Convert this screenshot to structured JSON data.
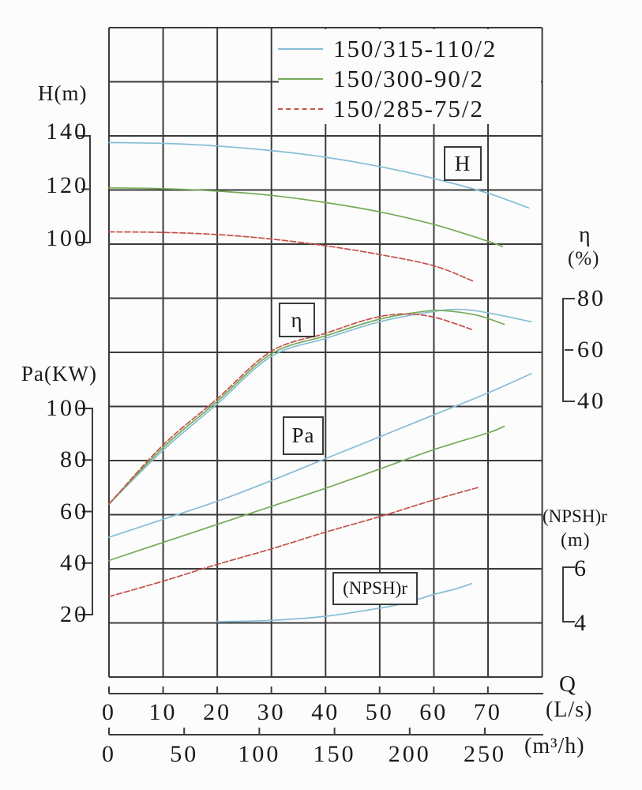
{
  "legend": {
    "items": [
      {
        "label": "150/315-110/2",
        "color": "#85bdd5",
        "dash": false
      },
      {
        "label": "150/300-90/2",
        "color": "#77aa58",
        "dash": false
      },
      {
        "label": "150/285-75/2",
        "color": "#c4524b",
        "dash": true
      }
    ]
  },
  "labels": {
    "h_axis": "H(m)",
    "pa_axis": "Pa(KW)",
    "eta_axis": "η",
    "eta_unit": "(%)",
    "npsh_axis": "(NPSH)r",
    "npsh_unit": "(m)",
    "q": "Q",
    "q_unit_ls": "(L/s)",
    "q_unit_m3h": "(m³/h)",
    "box_h": "H",
    "box_eta": "η",
    "box_pa": "Pa",
    "box_npsh": "(NPSH)r"
  },
  "colors": {
    "grid": "#3b3b3b",
    "axis": "#3b3b3b",
    "text": "#1a1a1a",
    "background": "#fcfcfc"
  },
  "chart_data": {
    "type": "line",
    "grid": true,
    "legend_position": "top",
    "x_axis": {
      "label": "Q",
      "primary_unit": "L/s",
      "secondary_unit": "m³/h",
      "ticks_L_per_s": [
        0,
        10,
        20,
        30,
        40,
        50,
        60,
        70
      ],
      "ticks_m3_per_h": [
        0,
        50,
        100,
        150,
        200,
        250
      ],
      "xlim_L_per_s": [
        0,
        80
      ]
    },
    "sections": [
      {
        "key": "H",
        "label": "H",
        "ylabel": "H(m)",
        "yticks": [
          140,
          120,
          100
        ],
        "series": [
          {
            "name": "150/315-110/2",
            "color": "#85bdd5",
            "dash": false,
            "points": [
              [
                0,
                137.5
              ],
              [
                10,
                137.2
              ],
              [
                20,
                136.2
              ],
              [
                30,
                134.5
              ],
              [
                40,
                132
              ],
              [
                50,
                128.5
              ],
              [
                60,
                124
              ],
              [
                70,
                118.5
              ],
              [
                77.5,
                113
              ]
            ]
          },
          {
            "name": "150/300-90/2",
            "color": "#77aa58",
            "dash": false,
            "points": [
              [
                0,
                120.5
              ],
              [
                10,
                120.2
              ],
              [
                20,
                119.3
              ],
              [
                30,
                117.7
              ],
              [
                40,
                115
              ],
              [
                50,
                111.5
              ],
              [
                60,
                106.8
              ],
              [
                70,
                100.5
              ],
              [
                72.7,
                98.5
              ]
            ]
          },
          {
            "name": "150/285-75/2",
            "color": "#c4524b",
            "dash": true,
            "points": [
              [
                0,
                104
              ],
              [
                10,
                103.8
              ],
              [
                20,
                103
              ],
              [
                30,
                101.3
              ],
              [
                40,
                98.8
              ],
              [
                50,
                95.5
              ],
              [
                60,
                91.3
              ],
              [
                67.3,
                85.5
              ]
            ]
          }
        ]
      },
      {
        "key": "eta",
        "label": "η",
        "ylabel": "η(%)",
        "yticks": [
          80,
          60,
          40
        ],
        "series": [
          {
            "name": "150/315-110/2",
            "color": "#85bdd5",
            "dash": false,
            "points": [
              [
                0,
                0
              ],
              [
                10,
                21
              ],
              [
                20,
                39
              ],
              [
                30,
                57.5
              ],
              [
                40,
                64.5
              ],
              [
                50,
                71
              ],
              [
                60,
                75
              ],
              [
                65,
                75.8
              ],
              [
                70,
                74.5
              ],
              [
                78,
                71
              ]
            ]
          },
          {
            "name": "150/300-90/2",
            "color": "#77aa58",
            "dash": false,
            "points": [
              [
                0,
                0
              ],
              [
                10,
                22
              ],
              [
                20,
                40
              ],
              [
                30,
                58.5
              ],
              [
                40,
                65.5
              ],
              [
                50,
                72
              ],
              [
                58,
                75
              ],
              [
                62,
                75.3
              ],
              [
                68,
                73.5
              ],
              [
                73,
                70
              ]
            ]
          },
          {
            "name": "150/285-75/2",
            "color": "#c4524b",
            "dash": true,
            "points": [
              [
                0,
                0
              ],
              [
                10,
                23
              ],
              [
                20,
                41
              ],
              [
                30,
                59.5
              ],
              [
                40,
                66.5
              ],
              [
                48,
                72
              ],
              [
                54,
                74
              ],
              [
                60,
                72.8
              ],
              [
                67,
                68
              ]
            ]
          }
        ]
      },
      {
        "key": "Pa",
        "label": "Pa",
        "ylabel": "Pa(KW)",
        "yticks": [
          100,
          80,
          60,
          40,
          20
        ],
        "series": [
          {
            "name": "150/315-110/2",
            "color": "#85bdd5",
            "dash": false,
            "points": [
              [
                0,
                50
              ],
              [
                10,
                57
              ],
              [
                20,
                64
              ],
              [
                30,
                72
              ],
              [
                40,
                80.5
              ],
              [
                50,
                89
              ],
              [
                60,
                97.5
              ],
              [
                70,
                106
              ],
              [
                78,
                113.5
              ]
            ]
          },
          {
            "name": "150/300-90/2",
            "color": "#77aa58",
            "dash": false,
            "points": [
              [
                0,
                41
              ],
              [
                10,
                48
              ],
              [
                20,
                55
              ],
              [
                30,
                62
              ],
              [
                40,
                69
              ],
              [
                50,
                76.5
              ],
              [
                60,
                84
              ],
              [
                70,
                90.5
              ],
              [
                73,
                93
              ]
            ]
          },
          {
            "name": "150/285-75/2",
            "color": "#c4524b",
            "dash": true,
            "points": [
              [
                0,
                27
              ],
              [
                10,
                33
              ],
              [
                20,
                39.5
              ],
              [
                30,
                45.5
              ],
              [
                40,
                52
              ],
              [
                50,
                58
              ],
              [
                60,
                64.5
              ],
              [
                68.5,
                69.5
              ]
            ]
          }
        ]
      },
      {
        "key": "NPSH",
        "label": "(NPSH)r",
        "ylabel": "(NPSH)r (m)",
        "yticks": [
          6,
          4
        ],
        "series": [
          {
            "name": "150/315-110/2",
            "color": "#85bdd5",
            "dash": false,
            "points": [
              [
                20,
                4.0
              ],
              [
                30,
                4.05
              ],
              [
                40,
                4.2
              ],
              [
                50,
                4.5
              ],
              [
                55,
                4.7
              ],
              [
                60,
                5.0
              ],
              [
                64,
                5.2
              ],
              [
                67,
                5.4
              ]
            ]
          }
        ]
      }
    ]
  }
}
